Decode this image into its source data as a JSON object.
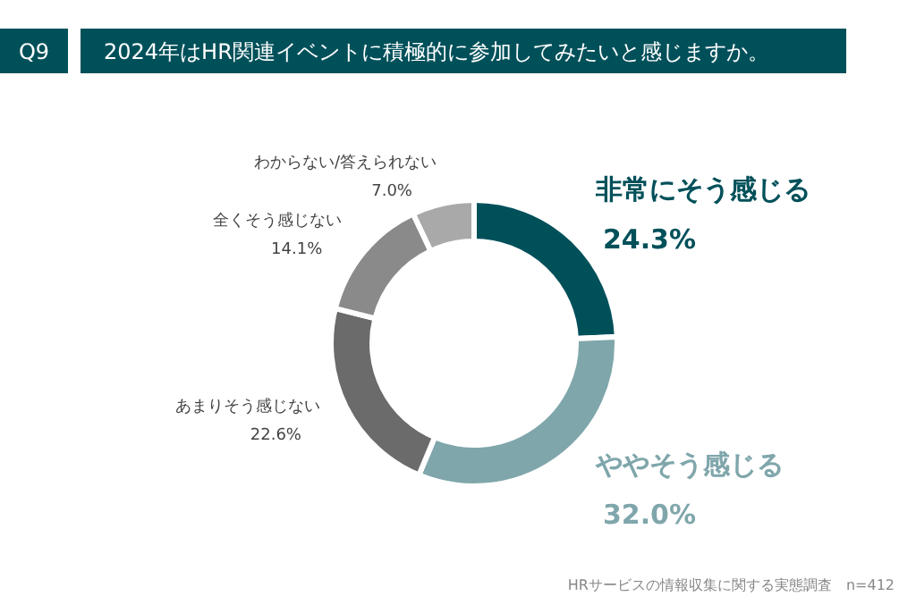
{
  "chart_data": {
    "type": "donut",
    "title": "2024年はHR関連イベントに積極的に参加してみたいと感じますか。",
    "categories": [
      "非常にそう感じる",
      "ややそう感じる",
      "あまりそう感じない",
      "全くそう感じない",
      "わからない/答えられない"
    ],
    "values": [
      24.3,
      32.0,
      22.6,
      14.1,
      7.0
    ],
    "value_labels": [
      "24.3%",
      "32.0%",
      "22.6%",
      "14.1%",
      "7.0%"
    ],
    "colors": [
      "#00505a",
      "#7fa6ab",
      "#6b6b6b",
      "#8a8a8a",
      "#a9a9a9"
    ],
    "annotations": [
      "Q9",
      "HRサービスの情報収集に関する実態調査　n=412"
    ]
  }
}
